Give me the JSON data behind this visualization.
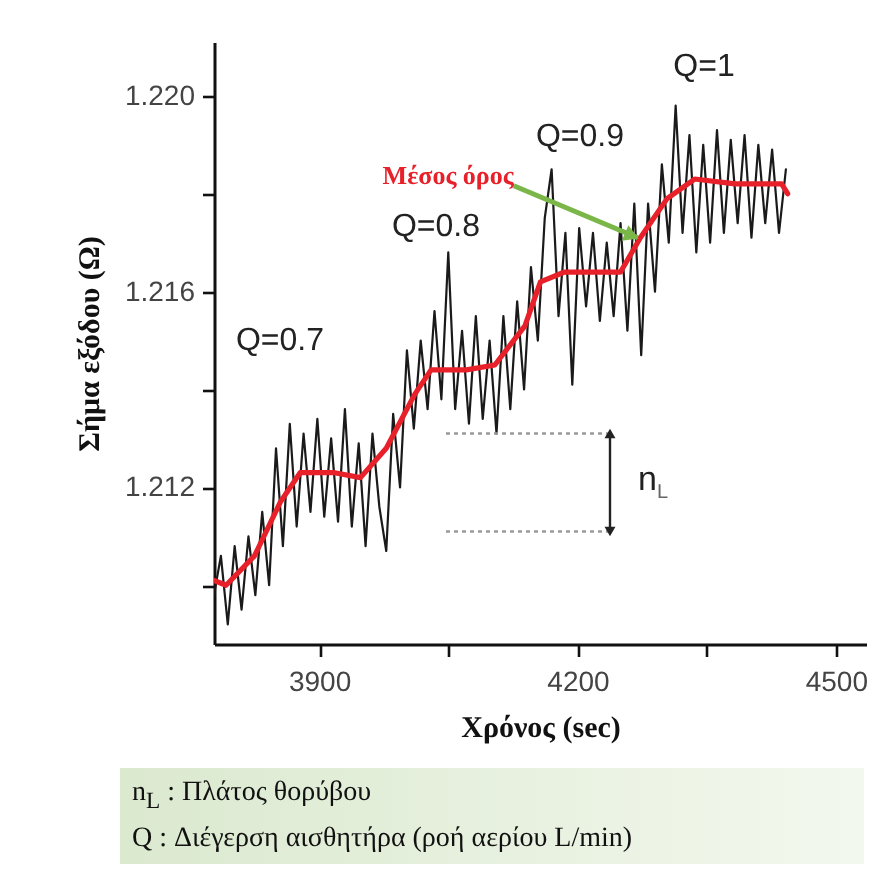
{
  "chart_data": {
    "type": "line",
    "xlabel": "Χρόνος (sec)",
    "ylabel": "Σήμα εξόδου (Ω)",
    "xlim": [
      3778,
      4535
    ],
    "ylim": [
      1.2088,
      1.2211
    ],
    "xticks": [
      3900,
      {
        "value": 4050,
        "label": null
      },
      4200,
      {
        "value": 4350,
        "label": null
      },
      4500
    ],
    "yticks": [
      {
        "value": 1.21,
        "label": null
      },
      {
        "value": 1.212,
        "label": "1.212"
      },
      {
        "value": 1.214,
        "label": null
      },
      {
        "value": 1.216,
        "label": "1.216"
      },
      {
        "value": 1.218,
        "label": null
      },
      {
        "value": 1.22,
        "label": "1.220"
      }
    ],
    "grid": false,
    "series": [
      {
        "color": "#1a1a1a",
        "x": [
          3778,
          3786,
          3794,
          3802,
          3810,
          3818,
          3826,
          3834,
          3842,
          3850,
          3858,
          3866,
          3874,
          3882,
          3890,
          3898,
          3906,
          3914,
          3922,
          3930,
          3938,
          3946,
          3954,
          3962,
          3970,
          3978,
          3986,
          3994,
          4002,
          4010,
          4018,
          4026,
          4034,
          4042,
          4050,
          4058,
          4066,
          4074,
          4082,
          4090,
          4098,
          4106,
          4114,
          4122,
          4130,
          4138,
          4146,
          4154,
          4162,
          4170,
          4178,
          4186,
          4194,
          4202,
          4210,
          4218,
          4226,
          4234,
          4242,
          4250,
          4258,
          4266,
          4274,
          4282,
          4290,
          4298,
          4306,
          4314,
          4322,
          4330,
          4338,
          4346,
          4354,
          4362,
          4370,
          4378,
          4386,
          4394,
          4402,
          4410,
          4418,
          4426,
          4434,
          4442
        ],
        "values": [
          1.2098,
          1.2106,
          1.2092,
          1.2108,
          1.2095,
          1.211,
          1.2098,
          1.2115,
          1.21,
          1.2128,
          1.2108,
          1.2133,
          1.2112,
          1.2131,
          1.2115,
          1.2134,
          1.2114,
          1.213,
          1.2113,
          1.2136,
          1.2112,
          1.2129,
          1.2108,
          1.2131,
          1.2116,
          1.2107,
          1.2135,
          1.212,
          1.2148,
          1.2132,
          1.215,
          1.2136,
          1.2156,
          1.2138,
          1.2168,
          1.2136,
          1.2152,
          1.2133,
          1.2155,
          1.2134,
          1.215,
          1.2131,
          1.2155,
          1.2136,
          1.2158,
          1.214,
          1.2165,
          1.215,
          1.2175,
          1.2185,
          1.2155,
          1.2172,
          1.2141,
          1.2173,
          1.2157,
          1.2172,
          1.2154,
          1.217,
          1.2155,
          1.2174,
          1.2152,
          1.2178,
          1.2147,
          1.2178,
          1.216,
          1.2186,
          1.217,
          1.2198,
          1.2172,
          1.2192,
          1.2168,
          1.219,
          1.217,
          1.2193,
          1.2172,
          1.2191,
          1.2174,
          1.2192,
          1.2171,
          1.219,
          1.2174,
          1.2189,
          1.2172,
          1.2185
        ]
      },
      {
        "color": "#e8202a",
        "x": [
          3778,
          3792,
          3825,
          3855,
          3878,
          3918,
          3948,
          3978,
          4011,
          4030,
          4071,
          4104,
          4139,
          4157,
          4185,
          4220,
          4250,
          4273,
          4304,
          4336,
          4383,
          4437,
          4444
        ],
        "values": [
          1.2101,
          1.21,
          1.2106,
          1.2117,
          1.2123,
          1.2123,
          1.2122,
          1.2128,
          1.2139,
          1.2144,
          1.2144,
          1.2145,
          1.2153,
          1.2162,
          1.2164,
          1.2164,
          1.2164,
          1.2171,
          1.2179,
          1.2183,
          1.2182,
          1.2182,
          1.218
        ]
      }
    ],
    "ref_lines": [
      {
        "axis": "y",
        "value": 1.2131,
        "color": "#999999",
        "line_style": "dotted"
      },
      {
        "axis": "y",
        "value": 1.2111,
        "color": "#999999",
        "line_style": "dotted"
      }
    ],
    "annotations": [
      "Q=0.7",
      "Q=0.8",
      "Q=0.9",
      "Q=1",
      {
        "text": "Μέσος όρος",
        "x": 4270,
        "y": 1.2171
      },
      "n$_{L}$",
      "n$_{L}$ : Πλάτος θορύβου",
      "Q : Διέγερση αισθητήρα (ροή αερίου L/min)"
    ]
  }
}
